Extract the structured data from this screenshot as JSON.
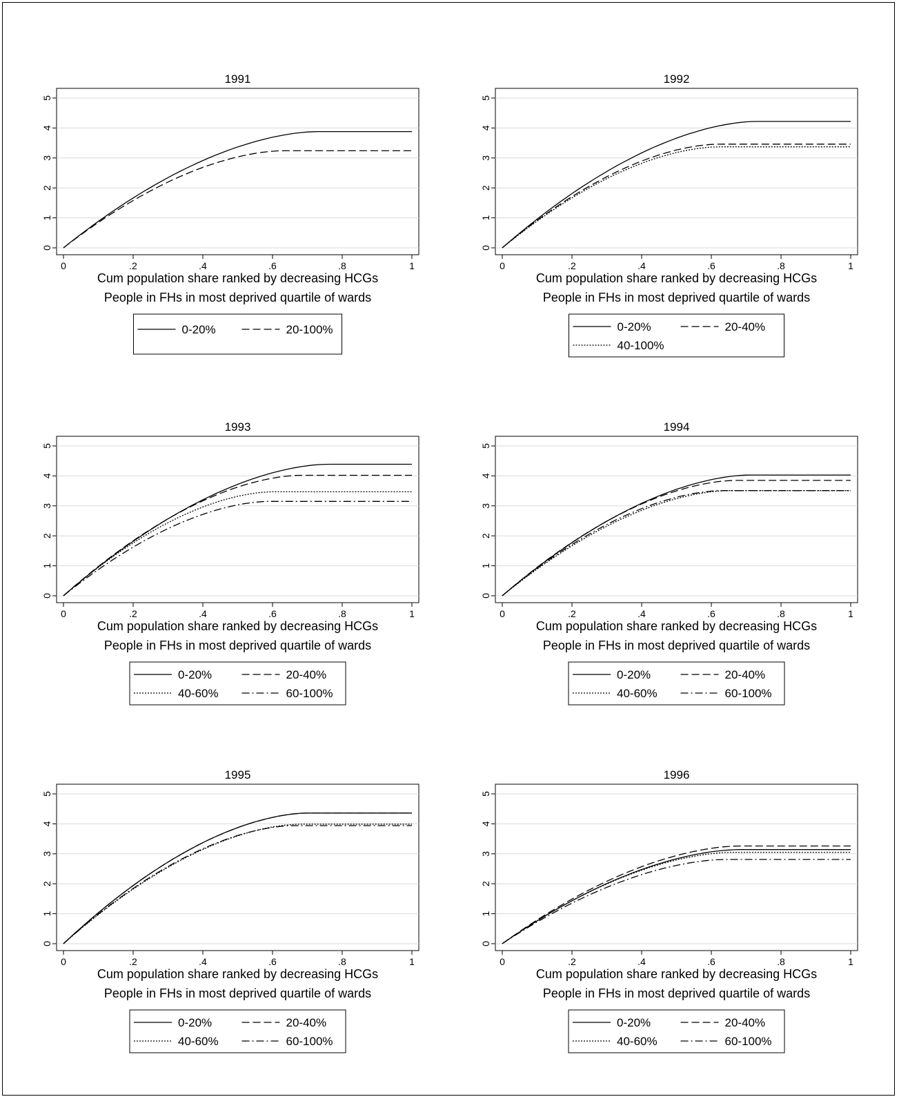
{
  "figure": {
    "xlabel": "Cum population share ranked by decreasing HCGs",
    "note": "People in FHs in most deprived quartile of wards"
  },
  "chart_data": [
    {
      "type": "line",
      "title": "1991",
      "xlabel": "Cum population share ranked by decreasing HCGs",
      "xlim": [
        0,
        1
      ],
      "ylim": [
        0,
        5
      ],
      "xticks": [
        "0",
        ".2",
        ".4",
        ".6",
        ".8",
        "1"
      ],
      "yticks": [
        "0",
        "1",
        "2",
        "3",
        "4",
        "5"
      ],
      "grid": true,
      "legend": "bottom",
      "series": [
        {
          "name": "0-20%",
          "style": "solid",
          "peak_x": 0.73,
          "plateau": 3.88
        },
        {
          "name": "20-100%",
          "style": "dash",
          "peak_x": 0.63,
          "plateau": 3.24
        }
      ]
    },
    {
      "type": "line",
      "title": "1992",
      "xlabel": "Cum population share ranked by decreasing HCGs",
      "xlim": [
        0,
        1
      ],
      "ylim": [
        0,
        5
      ],
      "xticks": [
        "0",
        ".2",
        ".4",
        ".6",
        ".8",
        "1"
      ],
      "yticks": [
        "0",
        "1",
        "2",
        "3",
        "4",
        "5"
      ],
      "grid": true,
      "legend": "bottom",
      "series": [
        {
          "name": "0-20%",
          "style": "solid",
          "peak_x": 0.73,
          "plateau": 4.22
        },
        {
          "name": "20-40%",
          "style": "dash",
          "peak_x": 0.62,
          "plateau": 3.46
        },
        {
          "name": "40-100%",
          "style": "dot",
          "peak_x": 0.62,
          "plateau": 3.37
        }
      ]
    },
    {
      "type": "line",
      "title": "1993",
      "xlabel": "Cum population share ranked by decreasing HCGs",
      "xlim": [
        0,
        1
      ],
      "ylim": [
        0,
        5
      ],
      "xticks": [
        "0",
        ".2",
        ".4",
        ".6",
        ".8",
        "1"
      ],
      "yticks": [
        "0",
        "1",
        "2",
        "3",
        "4",
        "5"
      ],
      "grid": true,
      "legend": "bottom",
      "series": [
        {
          "name": "0-20%",
          "style": "solid",
          "peak_x": 0.76,
          "plateau": 4.39
        },
        {
          "name": "20-40%",
          "style": "dash",
          "peak_x": 0.68,
          "plateau": 4.02
        },
        {
          "name": "40-60%",
          "style": "dot",
          "peak_x": 0.6,
          "plateau": 3.47
        },
        {
          "name": "60-100%",
          "style": "dashdot",
          "peak_x": 0.59,
          "plateau": 3.15
        }
      ]
    },
    {
      "type": "line",
      "title": "1994",
      "xlabel": "Cum population share ranked by decreasing HCGs",
      "xlim": [
        0,
        1
      ],
      "ylim": [
        0,
        5
      ],
      "xticks": [
        "0",
        ".2",
        ".4",
        ".6",
        ".8",
        "1"
      ],
      "yticks": [
        "0",
        "1",
        "2",
        "3",
        "4",
        "5"
      ],
      "grid": true,
      "legend": "bottom",
      "series": [
        {
          "name": "0-20%",
          "style": "solid",
          "peak_x": 0.71,
          "plateau": 4.03
        },
        {
          "name": "20-40%",
          "style": "dash",
          "peak_x": 0.67,
          "plateau": 3.85
        },
        {
          "name": "40-60%",
          "style": "dot",
          "peak_x": 0.65,
          "plateau": 3.51
        },
        {
          "name": "60-100%",
          "style": "dashdot",
          "peak_x": 0.63,
          "plateau": 3.51
        }
      ]
    },
    {
      "type": "line",
      "title": "1995",
      "xlabel": "Cum population share ranked by decreasing HCGs",
      "xlim": [
        0,
        1
      ],
      "ylim": [
        0,
        5
      ],
      "xticks": [
        "0",
        ".2",
        ".4",
        ".6",
        ".8",
        "1"
      ],
      "yticks": [
        "0",
        "1",
        "2",
        "3",
        "4",
        "5"
      ],
      "grid": true,
      "legend": "bottom",
      "series": [
        {
          "name": "0-20%",
          "style": "solid",
          "peak_x": 0.7,
          "plateau": 4.36
        },
        {
          "name": "20-40%",
          "style": "dash",
          "peak_x": 0.7,
          "plateau": 4.36
        },
        {
          "name": "40-60%",
          "style": "dot",
          "peak_x": 0.68,
          "plateau": 3.99
        },
        {
          "name": "60-100%",
          "style": "dashdot",
          "peak_x": 0.66,
          "plateau": 3.94
        }
      ]
    },
    {
      "type": "line",
      "title": "1996",
      "xlabel": "Cum population share ranked by decreasing HCGs",
      "xlim": [
        0,
        1
      ],
      "ylim": [
        0,
        5
      ],
      "xticks": [
        "0",
        ".2",
        ".4",
        ".6",
        ".8",
        "1"
      ],
      "yticks": [
        "0",
        "1",
        "2",
        "3",
        "4",
        "5"
      ],
      "grid": true,
      "legend": "bottom",
      "series": [
        {
          "name": "0-20%",
          "style": "solid",
          "peak_x": 0.68,
          "plateau": 3.14
        },
        {
          "name": "20-40%",
          "style": "dash",
          "peak_x": 0.68,
          "plateau": 3.26
        },
        {
          "name": "40-60%",
          "style": "dot",
          "peak_x": 0.66,
          "plateau": 3.05
        },
        {
          "name": "60-100%",
          "style": "dashdot",
          "peak_x": 0.64,
          "plateau": 2.81
        }
      ]
    }
  ]
}
